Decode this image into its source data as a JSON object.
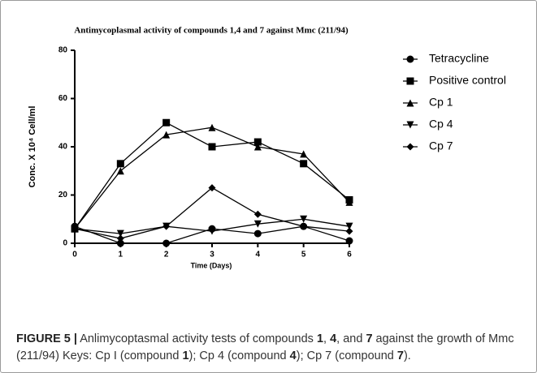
{
  "chart_data": {
    "type": "line",
    "title": "Antimycoplasmal activity of compounds 1,4 and 7 against Mmc (211/94)",
    "xlabel": "Time (Days)",
    "ylabel": "Conc. X 10⁴ Cell/ml",
    "x": [
      0,
      1,
      2,
      3,
      4,
      5,
      6
    ],
    "xlim": [
      0,
      6
    ],
    "xticks": [
      0,
      1,
      2,
      3,
      4,
      5,
      6
    ],
    "ylim": [
      0,
      80
    ],
    "yticks": [
      0,
      20,
      40,
      60,
      80
    ],
    "series": [
      {
        "name": "Tetracycline",
        "color": "#000000",
        "marker": "circle",
        "values": [
          7,
          0,
          0,
          6,
          4,
          7,
          1
        ]
      },
      {
        "name": "Positive control",
        "color": "#000000",
        "marker": "square",
        "values": [
          6,
          33,
          50,
          40,
          42,
          33,
          18
        ]
      },
      {
        "name": "Cp 1",
        "color": "#000000",
        "marker": "triangle-up",
        "values": [
          6,
          30,
          45,
          48,
          40,
          37,
          17
        ]
      },
      {
        "name": "Cp 4",
        "color": "#000000",
        "marker": "triangle-down",
        "values": [
          6,
          4,
          7,
          5,
          8,
          10,
          7
        ]
      },
      {
        "name": "Cp 7",
        "color": "#000000",
        "marker": "diamond",
        "values": [
          6,
          2,
          7,
          23,
          12,
          7,
          5
        ]
      }
    ]
  },
  "caption": [
    {
      "text": "FIGURE 5 |",
      "bold": true
    },
    {
      "text": " Anlimycoptasmal activity tests of compounds ",
      "bold": false
    },
    {
      "text": "1",
      "bold": true
    },
    {
      "text": ", ",
      "bold": false
    },
    {
      "text": "4",
      "bold": true
    },
    {
      "text": ", and ",
      "bold": false
    },
    {
      "text": "7",
      "bold": true
    },
    {
      "text": " against the growth of Mmc (211/94) Keys: Cp I (compound ",
      "bold": false
    },
    {
      "text": "1",
      "bold": true
    },
    {
      "text": "); Cp 4 (compound ",
      "bold": false
    },
    {
      "text": "4",
      "bold": true
    },
    {
      "text": "); Cp 7 (compound ",
      "bold": false
    },
    {
      "text": "7",
      "bold": true
    },
    {
      "text": ").",
      "bold": false
    }
  ]
}
